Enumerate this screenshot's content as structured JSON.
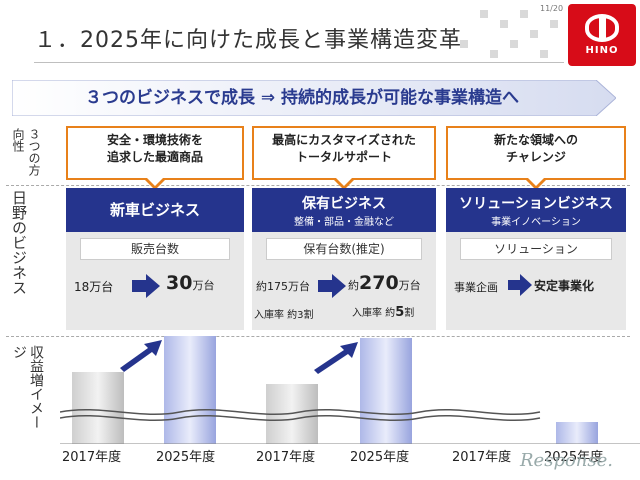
{
  "page_number": "11/20",
  "title": "１．2025年に向けた成長と事業構造変革",
  "logo_text": "HINO",
  "banner": "３つのビジネスで成長 ⇒ 持続的成長が可能な事業構造へ",
  "row_labels": {
    "direction": "３つの方向性",
    "business": "日野のビジネス",
    "image": "収益増イメージ"
  },
  "directions": [
    {
      "line1": "安全・環境技術を",
      "line2": "追求した最適商品"
    },
    {
      "line1": "最高にカスタマイズされた",
      "line2": "トータルサポート"
    },
    {
      "line1": "新たな領域への",
      "line2": "チャレンジ"
    }
  ],
  "businesses": [
    {
      "title": "新車ビジネス",
      "subtitle": "",
      "metric": "販売台数",
      "from": "18万台",
      "to_num": "30",
      "to_unit": "万台"
    },
    {
      "title": "保有ビジネス",
      "subtitle": "整備・部品・金融など",
      "metric": "保有台数(推定)",
      "from": "約175万台",
      "to_prefix": "約",
      "to_num": "270",
      "to_unit": "万台",
      "rate_from": "入庫率 約3割",
      "rate_to_prefix": "入庫率 約",
      "rate_to_num": "5",
      "rate_to_unit": "割"
    },
    {
      "title": "ソリューションビジネス",
      "subtitle": "事業イノベーション",
      "metric": "ソリューション",
      "from": "事業企画",
      "to": "安定事業化"
    }
  ],
  "years": [
    "2017年度",
    "2025年度",
    "2017年度",
    "2025年度",
    "2017年度",
    "2025年度"
  ],
  "watermark": "Response.",
  "colors": {
    "navy": "#25348d",
    "orange": "#e8811a",
    "red": "#d70c18"
  }
}
